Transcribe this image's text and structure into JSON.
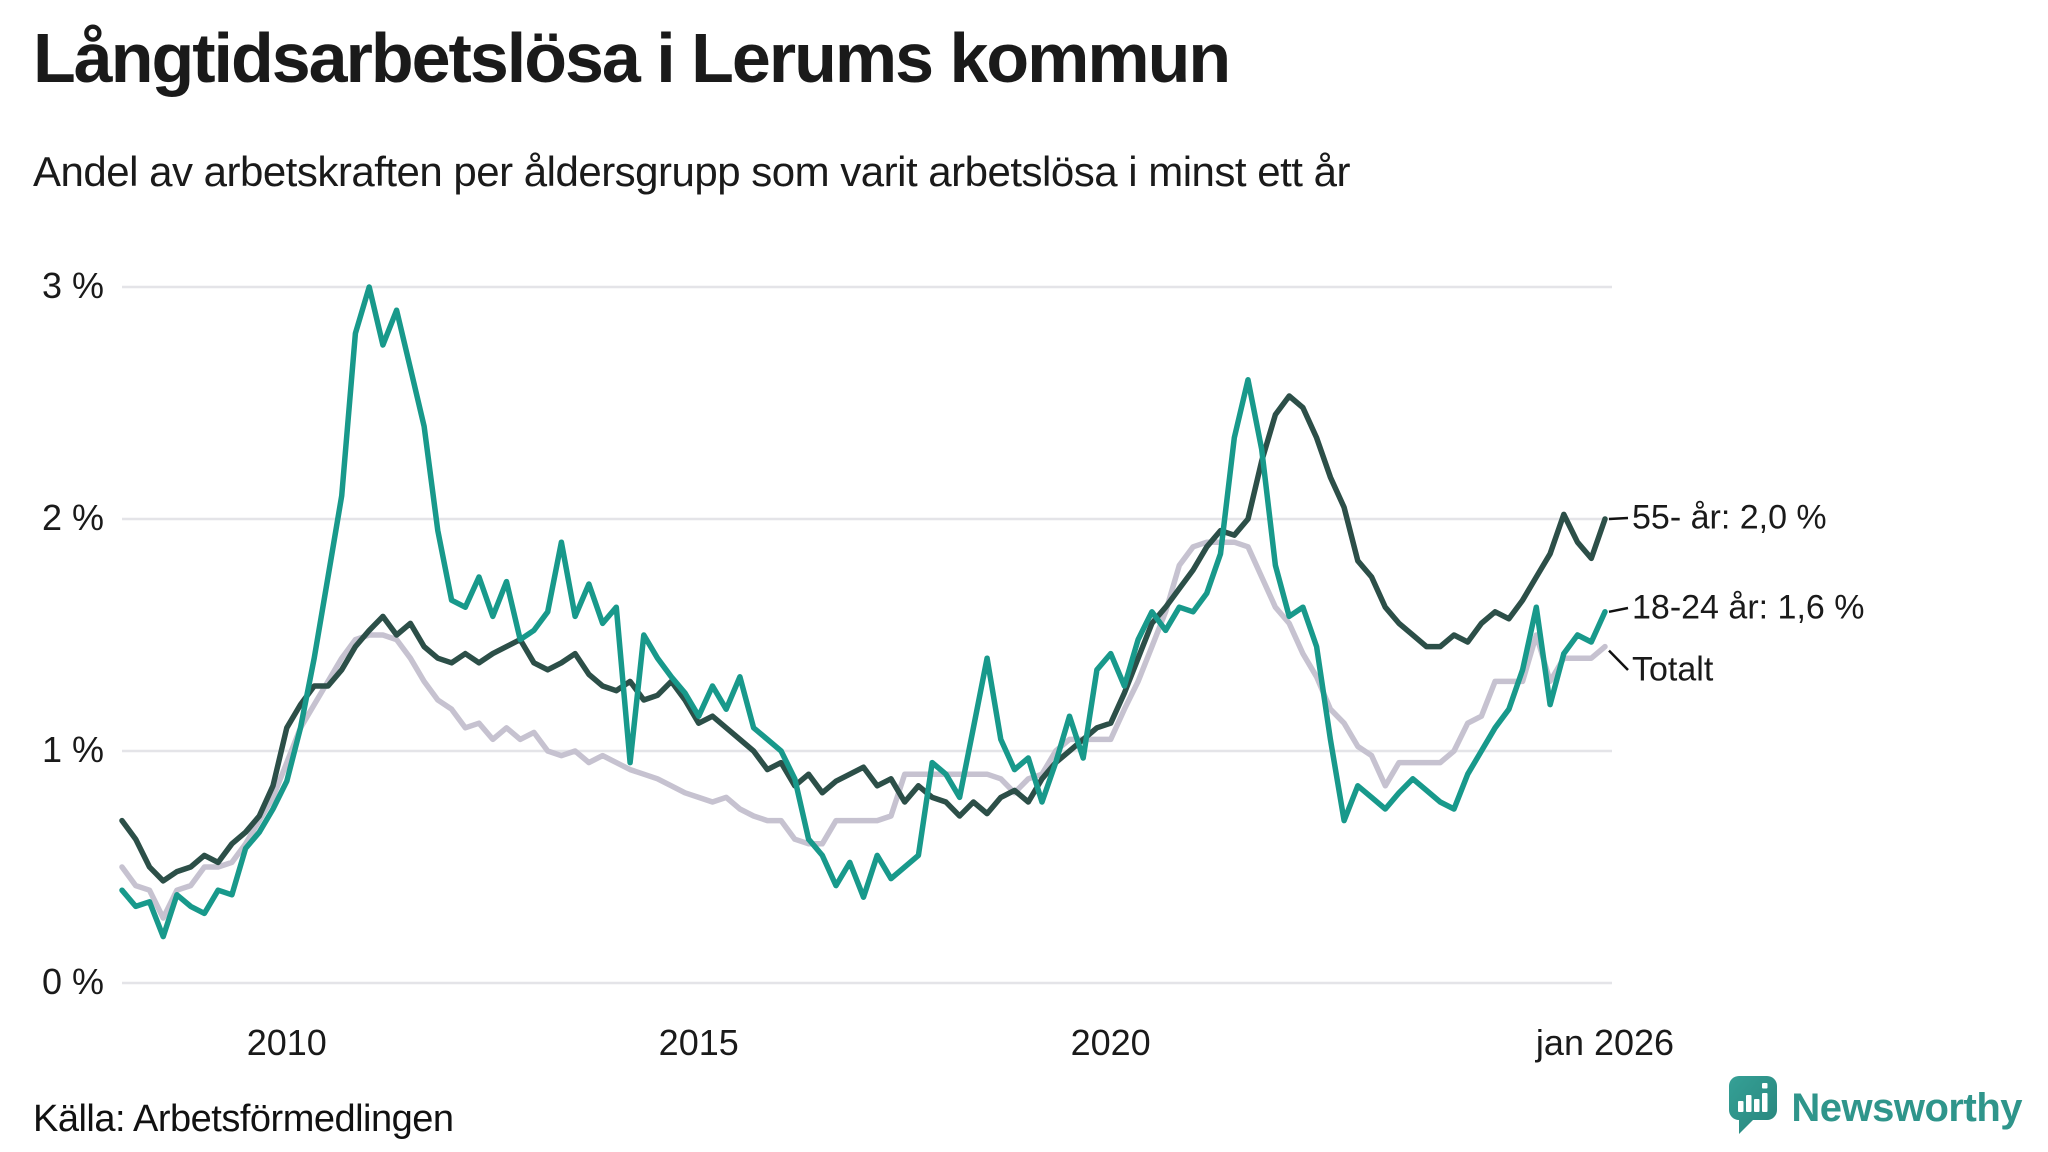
{
  "title": "Långtidsarbetslösa i Lerums kommun",
  "subtitle": "Andel av arbetskraften per åldersgrupp som varit arbetslösa i minst ett år",
  "source": "Källa: Arbetsförmedlingen",
  "logo": {
    "text": "Newsworthy",
    "color": "#2f958b",
    "icon": "speech-bubble-bar-chart-icon"
  },
  "colors": {
    "background": "#ffffff",
    "gridline": "#e4e4e8",
    "text": "#1a1a1a",
    "callout": "#111111"
  },
  "chart_data": {
    "type": "line",
    "title": "Långtidsarbetslösa i Lerums kommun",
    "subtitle": "Andel av arbetskraften per åldersgrupp som varit arbetslösa i minst ett år",
    "xlabel": "",
    "ylabel": "",
    "x_range": [
      2008,
      2026
    ],
    "x_step_years": 0.1666667,
    "ylim": [
      0,
      3.1
    ],
    "grid": "horizontal",
    "legend_position": "right-end-labels",
    "y_ticks": [
      {
        "value": 3,
        "label": "3 %"
      },
      {
        "value": 2,
        "label": "2 %"
      },
      {
        "value": 1,
        "label": "1 %"
      },
      {
        "value": 0,
        "label": "0 %"
      }
    ],
    "x_ticks": [
      {
        "value": 2010,
        "label": "2010"
      },
      {
        "value": 2015,
        "label": "2015"
      },
      {
        "value": 2020,
        "label": "2020"
      },
      {
        "value": 2026,
        "label": "jan 2026"
      }
    ],
    "series": [
      {
        "name": "55- år",
        "end_label": "55- år: 2,0 %",
        "last_value": 2.0,
        "color": "#2c4f48",
        "values": [
          0.7,
          0.62,
          0.5,
          0.44,
          0.48,
          0.5,
          0.55,
          0.52,
          0.6,
          0.65,
          0.72,
          0.85,
          1.1,
          1.2,
          1.28,
          1.28,
          1.35,
          1.45,
          1.52,
          1.58,
          1.5,
          1.55,
          1.45,
          1.4,
          1.38,
          1.42,
          1.38,
          1.42,
          1.45,
          1.48,
          1.38,
          1.35,
          1.38,
          1.42,
          1.33,
          1.28,
          1.26,
          1.3,
          1.22,
          1.24,
          1.3,
          1.22,
          1.12,
          1.15,
          1.1,
          1.05,
          1.0,
          0.92,
          0.95,
          0.85,
          0.9,
          0.82,
          0.87,
          0.9,
          0.93,
          0.85,
          0.88,
          0.78,
          0.85,
          0.8,
          0.78,
          0.72,
          0.78,
          0.73,
          0.8,
          0.83,
          0.78,
          0.88,
          0.95,
          1.0,
          1.05,
          1.1,
          1.12,
          1.25,
          1.4,
          1.55,
          1.62,
          1.7,
          1.78,
          1.88,
          1.95,
          1.93,
          2.0,
          2.25,
          2.45,
          2.53,
          2.48,
          2.35,
          2.18,
          2.05,
          1.82,
          1.75,
          1.62,
          1.55,
          1.5,
          1.45,
          1.45,
          1.5,
          1.47,
          1.55,
          1.6,
          1.57,
          1.65,
          1.75,
          1.85,
          2.02,
          1.9,
          1.83,
          2.0
        ]
      },
      {
        "name": "18-24 år",
        "end_label": "18-24 år: 1,6 %",
        "last_value": 1.6,
        "color": "#18998b",
        "values": [
          0.4,
          0.33,
          0.35,
          0.2,
          0.38,
          0.33,
          0.3,
          0.4,
          0.38,
          0.58,
          0.65,
          0.75,
          0.87,
          1.1,
          1.4,
          1.75,
          2.1,
          2.8,
          3.0,
          2.75,
          2.9,
          2.65,
          2.4,
          1.95,
          1.65,
          1.62,
          1.75,
          1.58,
          1.73,
          1.48,
          1.52,
          1.6,
          1.9,
          1.58,
          1.72,
          1.55,
          1.62,
          0.95,
          1.5,
          1.4,
          1.32,
          1.25,
          1.15,
          1.28,
          1.18,
          1.32,
          1.1,
          1.05,
          1.0,
          0.88,
          0.62,
          0.55,
          0.42,
          0.52,
          0.37,
          0.55,
          0.45,
          0.5,
          0.55,
          0.95,
          0.9,
          0.8,
          1.1,
          1.4,
          1.05,
          0.92,
          0.97,
          0.78,
          0.95,
          1.15,
          0.97,
          1.35,
          1.42,
          1.28,
          1.48,
          1.6,
          1.52,
          1.62,
          1.6,
          1.68,
          1.85,
          2.35,
          2.6,
          2.3,
          1.8,
          1.58,
          1.62,
          1.45,
          1.05,
          0.7,
          0.85,
          0.8,
          0.75,
          0.82,
          0.88,
          0.83,
          0.78,
          0.75,
          0.9,
          1.0,
          1.1,
          1.18,
          1.35,
          1.62,
          1.2,
          1.42,
          1.5,
          1.47,
          1.6
        ]
      },
      {
        "name": "Totalt",
        "end_label": "Totalt",
        "last_value": 1.45,
        "color": "#c6c2d0",
        "values": [
          0.5,
          0.42,
          0.4,
          0.28,
          0.4,
          0.42,
          0.5,
          0.5,
          0.52,
          0.6,
          0.7,
          0.8,
          0.95,
          1.1,
          1.2,
          1.3,
          1.4,
          1.48,
          1.5,
          1.5,
          1.48,
          1.4,
          1.3,
          1.22,
          1.18,
          1.1,
          1.12,
          1.05,
          1.1,
          1.05,
          1.08,
          1.0,
          0.98,
          1.0,
          0.95,
          0.98,
          0.95,
          0.92,
          0.9,
          0.88,
          0.85,
          0.82,
          0.8,
          0.78,
          0.8,
          0.75,
          0.72,
          0.7,
          0.7,
          0.62,
          0.6,
          0.6,
          0.7,
          0.7,
          0.7,
          0.7,
          0.72,
          0.9,
          0.9,
          0.9,
          0.9,
          0.9,
          0.9,
          0.9,
          0.88,
          0.82,
          0.88,
          0.9,
          1.0,
          1.05,
          1.05,
          1.05,
          1.05,
          1.18,
          1.3,
          1.45,
          1.6,
          1.8,
          1.88,
          1.9,
          1.9,
          1.9,
          1.88,
          1.75,
          1.62,
          1.55,
          1.42,
          1.32,
          1.18,
          1.12,
          1.02,
          0.98,
          0.85,
          0.95,
          0.95,
          0.95,
          0.95,
          1.0,
          1.12,
          1.15,
          1.3,
          1.3,
          1.3,
          1.5,
          1.3,
          1.4,
          1.4,
          1.4,
          1.45
        ]
      }
    ]
  }
}
